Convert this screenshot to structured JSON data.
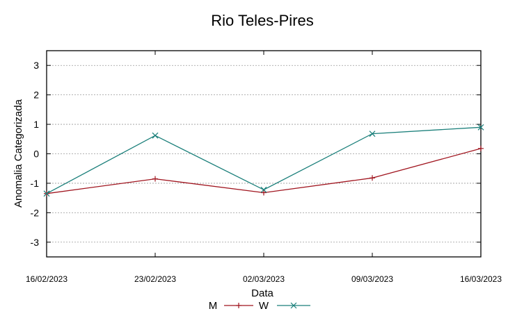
{
  "chart_data": {
    "type": "line",
    "title": "Rio Teles-Pires",
    "xlabel": "Data",
    "ylabel": "Anomalia Categorizada",
    "categories": [
      "16/02/2023",
      "23/02/2023",
      "02/03/2023",
      "09/03/2023",
      "16/03/2023"
    ],
    "yticks": [
      3,
      2,
      1,
      0,
      -1,
      -2,
      -3
    ],
    "ytick_labels": [
      "3",
      "2",
      "1",
      "0",
      "-1",
      "-2",
      "-3"
    ],
    "ylim": [
      -3.5,
      3.5
    ],
    "grid": true,
    "legend_position": "bottom-center",
    "series": [
      {
        "name": "M",
        "values": [
          -1.35,
          -0.85,
          -1.32,
          -0.82,
          0.18
        ],
        "color": "#a0141e",
        "marker": "plus"
      },
      {
        "name": "W",
        "values": [
          -1.35,
          0.62,
          -1.22,
          0.68,
          0.9
        ],
        "color": "#1a7f7a",
        "marker": "x"
      }
    ]
  }
}
